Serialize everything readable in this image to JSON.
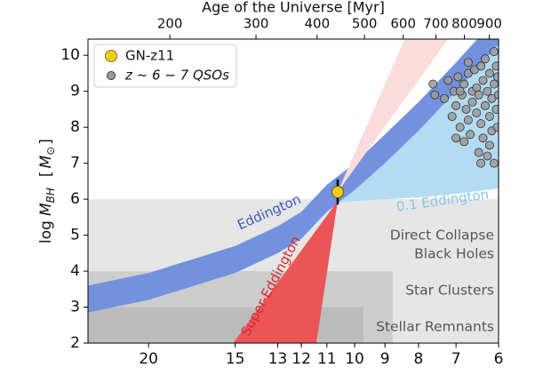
{
  "chart_data": {
    "type": "scatter",
    "top_label": "Age of the Universe [Myr]",
    "ylabel_parts": [
      "log",
      "M",
      "BH",
      "[",
      "M",
      "⊙",
      "]"
    ],
    "xscale": "log1p",
    "xlim": [
      24.4,
      6
    ],
    "xticks": [
      20,
      15,
      13,
      12,
      11,
      10,
      9,
      8,
      7,
      6
    ],
    "x2scale": "log",
    "x2lim": [
      136,
      940
    ],
    "x2ticks": [
      200,
      300,
      400,
      500,
      600,
      700,
      800,
      900
    ],
    "ylim": [
      2,
      10.45
    ],
    "yticks": [
      2,
      3,
      4,
      5,
      6,
      7,
      8,
      9,
      10
    ],
    "legend": "upper left",
    "regions": [
      {
        "label": [
          "Direct Collapse",
          "Black Holes"
        ],
        "ylim": [
          2,
          6
        ],
        "x_end": 6,
        "color": "#e6e6e6"
      },
      {
        "label": [
          "Star Clusters"
        ],
        "ylim": [
          2,
          4
        ],
        "x_end": 8.76,
        "color": "#cdcdcd"
      },
      {
        "label": [
          "Stellar Remnants"
        ],
        "ylim": [
          2,
          3
        ],
        "x_end": 9.7,
        "color": "#bcbcbc"
      }
    ],
    "bands": [
      {
        "label": "Eddington",
        "color": "#7391de",
        "x": [
          24.4,
          20,
          15,
          13,
          12,
          11,
          10,
          9,
          8,
          7,
          6
        ],
        "lower": [
          2.85,
          3.2,
          3.95,
          4.5,
          4.9,
          5.65,
          6.25,
          7.0,
          7.9,
          9.0,
          10.3
        ],
        "upper": [
          3.6,
          3.95,
          4.7,
          5.25,
          5.65,
          6.4,
          7.0,
          7.8,
          8.7,
          9.8,
          11.1
        ]
      },
      {
        "label": "0.1 Eddington",
        "color": "#b3dcf2",
        "x": [
          10.6,
          10,
          9,
          8,
          7,
          6
        ],
        "lower": [
          5.9,
          5.95,
          6.0,
          6.05,
          6.15,
          6.3
        ],
        "upper": [
          5.9,
          6.25,
          7.0,
          7.9,
          9.0,
          10.3
        ]
      }
    ],
    "wedges": [
      {
        "label": "Super-Eddington",
        "color": "#ec5558",
        "x": [
          10.6,
          15.1,
          11.4
        ],
        "y": [
          5.95,
          2,
          2
        ]
      },
      {
        "color": "#fadcdc",
        "x": [
          10.6,
          8.4,
          7.2
        ],
        "y": [
          6.2,
          10.45,
          10.45
        ]
      }
    ],
    "series": [
      {
        "name": "GN-z11",
        "color": "#f5cc1a",
        "x": [
          10.6
        ],
        "values": [
          6.2
        ],
        "yerr": [
          0.35
        ]
      },
      {
        "name": "z ∼ 6 − 7 QSOs",
        "color": "#9a9a9a",
        "x": [
          7.6,
          7.55,
          7.3,
          7.2,
          7.1,
          7.05,
          7.0,
          6.95,
          6.9,
          6.85,
          6.8,
          6.8,
          6.75,
          6.7,
          6.7,
          6.65,
          6.6,
          6.6,
          6.55,
          6.5,
          6.5,
          6.45,
          6.45,
          6.4,
          6.4,
          6.35,
          6.35,
          6.3,
          6.3,
          6.25,
          6.25,
          6.2,
          6.2,
          6.15,
          6.15,
          6.1,
          6.1,
          6.1,
          6.05,
          6.05,
          6.03,
          6.02,
          6.0,
          6.4,
          6.2,
          6.7,
          6.9,
          7.0
        ],
        "values": [
          9.2,
          8.9,
          8.8,
          9.3,
          8.3,
          9.0,
          8.6,
          9.4,
          8.0,
          8.9,
          9.2,
          7.6,
          8.5,
          9.5,
          8.2,
          7.8,
          9.0,
          8.7,
          9.6,
          8.4,
          9.1,
          7.3,
          8.9,
          9.7,
          8.1,
          9.3,
          7.7,
          8.6,
          9.9,
          7.2,
          9.0,
          8.3,
          9.5,
          7.9,
          8.8,
          9.2,
          10.1,
          7.0,
          8.5,
          9.7,
          8.0,
          9.4,
          8.9,
          7.0,
          7.5,
          9.8,
          9.0,
          7.7
        ]
      }
    ]
  }
}
